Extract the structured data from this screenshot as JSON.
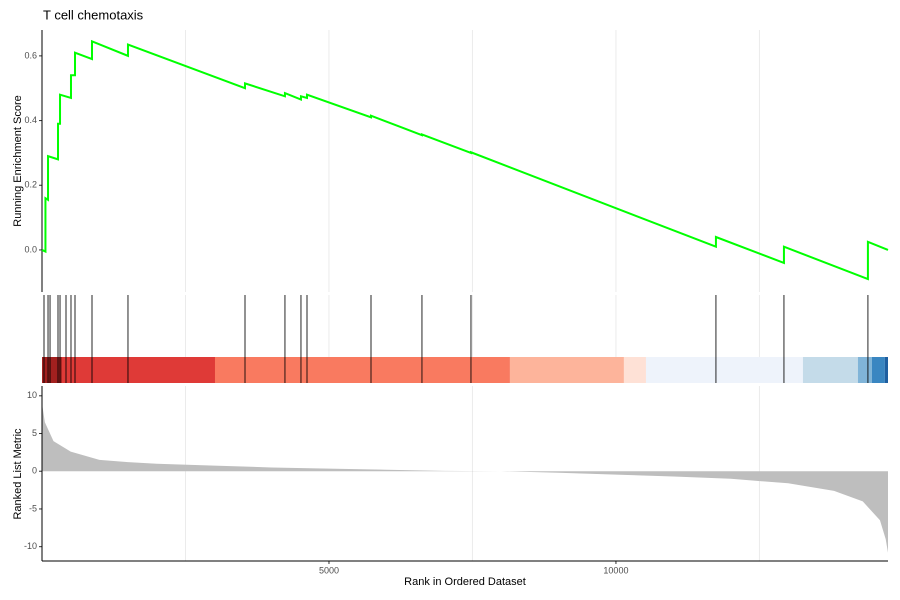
{
  "chart_data": [
    {
      "type": "line",
      "title": "T cell chemotaxis",
      "y_label": "Running Enrichment Score",
      "color": "#00ff00",
      "x": [
        0,
        60,
        60,
        105,
        105,
        279,
        279,
        314,
        314,
        505,
        505,
        575,
        575,
        871,
        871,
        1498,
        1498,
        3537,
        3537,
        4233,
        4233,
        4512,
        4512,
        4617,
        4617,
        5732,
        5732,
        6620,
        6620,
        7474,
        7474,
        11742,
        11742,
        12927,
        12927,
        14390,
        14390,
        14740
      ],
      "values": [
        0,
        -0.005,
        0.16,
        0.155,
        0.29,
        0.28,
        0.39,
        0.39,
        0.48,
        0.47,
        0.54,
        0.54,
        0.61,
        0.59,
        0.645,
        0.6,
        0.635,
        0.5,
        0.515,
        0.475,
        0.485,
        0.465,
        0.475,
        0.47,
        0.48,
        0.41,
        0.415,
        0.355,
        0.357,
        0.3,
        0.302,
        0.01,
        0.04,
        -0.04,
        0.01,
        -0.09,
        0.025,
        0
      ],
      "xlim": [
        0,
        14740
      ],
      "ylim": [
        -0.13,
        0.68
      ],
      "yticks": [
        {
          "value": 0,
          "label": "0.0"
        },
        0.2,
        0.4,
        0.6
      ],
      "xgrid": [
        2500,
        5000,
        7500,
        10000,
        12500
      ]
    },
    {
      "type": "rug",
      "xlim": [
        0,
        14740
      ],
      "hits": [
        35,
        105,
        140,
        279,
        314,
        418,
        505,
        575,
        871,
        1498,
        3537,
        4233,
        4512,
        4617,
        5732,
        6620,
        7474,
        11742,
        12927,
        14390
      ],
      "colorbar": [
        {
          "start": 0,
          "end": 348,
          "color": "#a3201f"
        },
        {
          "start": 348,
          "end": 3014,
          "color": "#df3a37"
        },
        {
          "start": 3014,
          "end": 8153,
          "color": "#f97a60"
        },
        {
          "start": 8153,
          "end": 10139,
          "color": "#fdb49b"
        },
        {
          "start": 10139,
          "end": 10523,
          "color": "#fee1d6"
        },
        {
          "start": 10523,
          "end": 13258,
          "color": "#eef3fb"
        },
        {
          "start": 13258,
          "end": 14216,
          "color": "#c4dbe9"
        },
        {
          "start": 14216,
          "end": 14460,
          "color": "#80b4d8"
        },
        {
          "start": 14460,
          "end": 14686,
          "color": "#3a86c1"
        },
        {
          "start": 14686,
          "end": 14740,
          "color": "#1f5fa0"
        }
      ],
      "xgrid": [
        2500,
        5000,
        7500,
        10000,
        12500
      ]
    },
    {
      "type": "area",
      "y_label": "Ranked List Metric",
      "x_label": "Rank in Ordered Dataset",
      "color": "#bebebe",
      "x": [
        0,
        50,
        200,
        500,
        1000,
        1500,
        2000,
        3000,
        4000,
        5000,
        6000,
        7000,
        8000,
        9000,
        10000,
        11000,
        12000,
        13000,
        13800,
        14300,
        14600,
        14700,
        14740
      ],
      "values": [
        9,
        6.5,
        4,
        2.6,
        1.5,
        1.2,
        1.0,
        0.75,
        0.5,
        0.35,
        0.2,
        0.05,
        0,
        -0.2,
        -0.45,
        -0.7,
        -1.0,
        -1.6,
        -2.6,
        -4,
        -6.5,
        -9,
        -10.8
      ],
      "xlim": [
        0,
        14740
      ],
      "ylim": [
        -11.9,
        11.3
      ],
      "xticks": [
        5000,
        10000
      ],
      "yticks": [
        10,
        5,
        0,
        -5,
        -10
      ],
      "x_minor_grid": [
        2500,
        7500,
        12500
      ]
    }
  ]
}
